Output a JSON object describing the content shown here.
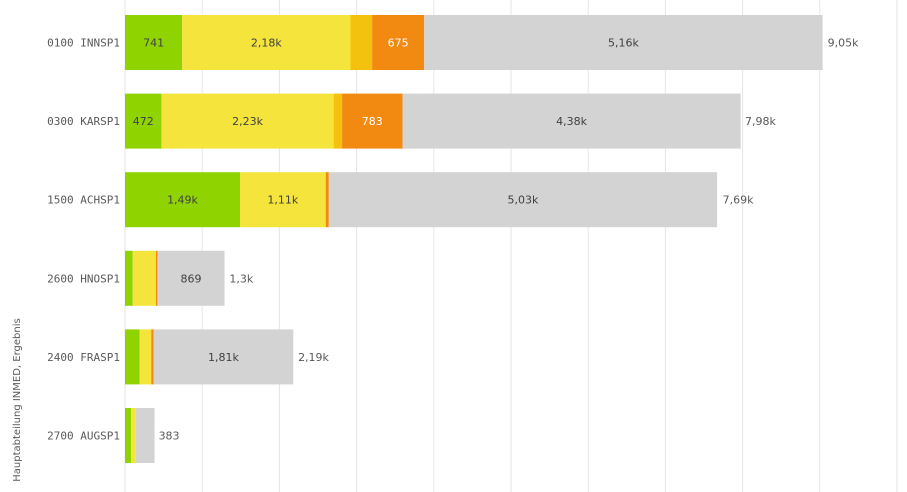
{
  "chart_data": {
    "type": "bar",
    "orientation": "horizontal",
    "stacked": true,
    "ylabel": "Hauptabteilung INMED, Ergebnis",
    "categories": [
      "0100 INNSP1",
      "0300 KARSP1",
      "1500 ACHSP1",
      "2600 HNOSP1",
      "2400 FRASP1",
      "2700 AUGSP1"
    ],
    "series_colors": [
      "#8fd400",
      "#f5e43c",
      "#f5c10f",
      "#f28a11",
      "#d3d3d3"
    ],
    "segments": [
      [
        741,
        2180,
        280,
        675,
        5160
      ],
      [
        472,
        2230,
        110,
        783,
        4380
      ],
      [
        1490,
        1110,
        0,
        40,
        5030
      ],
      [
        100,
        300,
        0,
        20,
        869
      ],
      [
        190,
        150,
        0,
        30,
        1810
      ],
      [
        80,
        60,
        0,
        0,
        243
      ]
    ],
    "segment_labels": [
      [
        "741",
        "2,18k",
        "",
        "675",
        "5,16k"
      ],
      [
        "472",
        "2,23k",
        "",
        "783",
        "4,38k"
      ],
      [
        "1,49k",
        "1,11k",
        "",
        "",
        "5,03k"
      ],
      [
        "",
        "",
        "",
        "",
        "869"
      ],
      [
        "",
        "",
        "",
        "",
        "1,81k"
      ],
      [
        "",
        "",
        "",
        "",
        ""
      ]
    ],
    "totals": [
      9050,
      7980,
      7690,
      1300,
      2190,
      383
    ],
    "total_labels": [
      "9,05k",
      "7,98k",
      "7,69k",
      "1,3k",
      "2,19k",
      "383"
    ],
    "xlim": [
      0,
      10000
    ],
    "grid": true
  }
}
